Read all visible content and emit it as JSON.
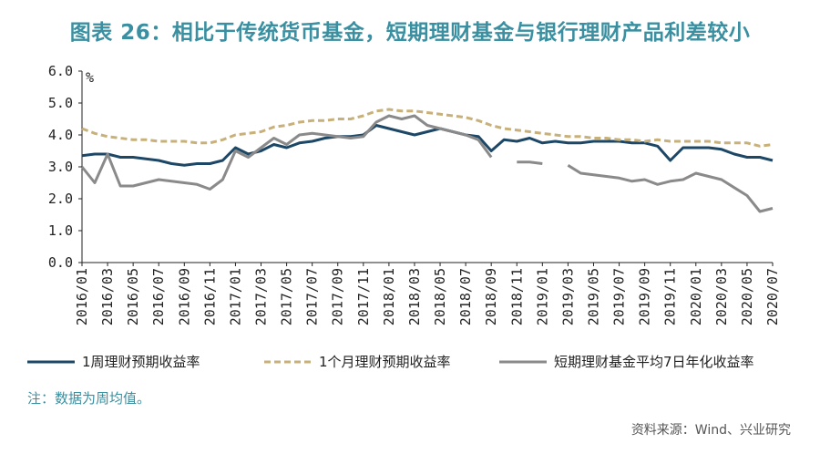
{
  "title": "图表 26：相比于传统货币基金，短期理财基金与银行理财产品利差较小",
  "note": "注：数据为周均值。",
  "source": "资料来源：Wind、兴业研究",
  "colors": {
    "title": "#3a8fa0",
    "s1": "#1d4766",
    "s2": "#c8b07a",
    "s3": "#8a8a8a"
  },
  "chart_data": {
    "type": "line",
    "yunit": "%",
    "ylim": [
      0,
      6
    ],
    "yticks": [
      "0.0",
      "1.0",
      "2.0",
      "3.0",
      "4.0",
      "5.0",
      "6.0"
    ],
    "xticks": [
      "2016/01",
      "2016/03",
      "2016/05",
      "2016/07",
      "2016/09",
      "2016/11",
      "2017/01",
      "2017/03",
      "2017/05",
      "2017/07",
      "2017/09",
      "2017/11",
      "2018/01",
      "2018/03",
      "2018/05",
      "2018/07",
      "2018/09",
      "2018/11",
      "2019/01",
      "2019/03",
      "2019/05",
      "2019/07",
      "2019/09",
      "2019/11",
      "2020/01",
      "2020/03",
      "2020/05",
      "2020/07"
    ],
    "grid": false,
    "legend_position": "bottom",
    "series": [
      {
        "name": "1周理财预期收益率",
        "style": "solid",
        "points": [
          [
            "2016/01",
            3.35
          ],
          [
            "2016/02",
            3.4
          ],
          [
            "2016/03",
            3.4
          ],
          [
            "2016/04",
            3.3
          ],
          [
            "2016/05",
            3.3
          ],
          [
            "2016/06",
            3.25
          ],
          [
            "2016/07",
            3.2
          ],
          [
            "2016/08",
            3.1
          ],
          [
            "2016/09",
            3.05
          ],
          [
            "2016/10",
            3.1
          ],
          [
            "2016/11",
            3.1
          ],
          [
            "2016/12",
            3.2
          ],
          [
            "2017/01",
            3.6
          ],
          [
            "2017/02",
            3.4
          ],
          [
            "2017/03",
            3.5
          ],
          [
            "2017/04",
            3.7
          ],
          [
            "2017/05",
            3.6
          ],
          [
            "2017/06",
            3.75
          ],
          [
            "2017/07",
            3.8
          ],
          [
            "2017/08",
            3.9
          ],
          [
            "2017/09",
            3.95
          ],
          [
            "2017/10",
            3.95
          ],
          [
            "2017/11",
            4.0
          ],
          [
            "2017/12",
            4.3
          ],
          [
            "2018/01",
            4.2
          ],
          [
            "2018/02",
            4.1
          ],
          [
            "2018/03",
            4.0
          ],
          [
            "2018/04",
            4.1
          ],
          [
            "2018/05",
            4.2
          ],
          [
            "2018/06",
            4.1
          ],
          [
            "2018/07",
            4.0
          ],
          [
            "2018/08",
            3.95
          ],
          [
            "2018/09",
            3.5
          ],
          [
            "2018/10",
            3.85
          ],
          [
            "2018/11",
            3.8
          ],
          [
            "2018/12",
            3.9
          ],
          [
            "2019/01",
            3.75
          ],
          [
            "2019/02",
            3.8
          ],
          [
            "2019/03",
            3.75
          ],
          [
            "2019/04",
            3.75
          ],
          [
            "2019/05",
            3.8
          ],
          [
            "2019/06",
            3.8
          ],
          [
            "2019/07",
            3.8
          ],
          [
            "2019/08",
            3.75
          ],
          [
            "2019/09",
            3.75
          ],
          [
            "2019/10",
            3.65
          ],
          [
            "2019/11",
            3.2
          ],
          [
            "2019/12",
            3.6
          ],
          [
            "2020/01",
            3.6
          ],
          [
            "2020/02",
            3.6
          ],
          [
            "2020/03",
            3.55
          ],
          [
            "2020/04",
            3.4
          ],
          [
            "2020/05",
            3.3
          ],
          [
            "2020/06",
            3.3
          ],
          [
            "2020/07",
            3.2
          ]
        ]
      },
      {
        "name": "1个月理财预期收益率",
        "style": "dashed",
        "points": [
          [
            "2016/01",
            4.2
          ],
          [
            "2016/02",
            4.05
          ],
          [
            "2016/03",
            3.95
          ],
          [
            "2016/04",
            3.9
          ],
          [
            "2016/05",
            3.85
          ],
          [
            "2016/06",
            3.85
          ],
          [
            "2016/07",
            3.8
          ],
          [
            "2016/08",
            3.8
          ],
          [
            "2016/09",
            3.8
          ],
          [
            "2016/10",
            3.75
          ],
          [
            "2016/11",
            3.75
          ],
          [
            "2016/12",
            3.85
          ],
          [
            "2017/01",
            4.0
          ],
          [
            "2017/02",
            4.05
          ],
          [
            "2017/03",
            4.1
          ],
          [
            "2017/04",
            4.25
          ],
          [
            "2017/05",
            4.3
          ],
          [
            "2017/06",
            4.4
          ],
          [
            "2017/07",
            4.45
          ],
          [
            "2017/08",
            4.45
          ],
          [
            "2017/09",
            4.5
          ],
          [
            "2017/10",
            4.5
          ],
          [
            "2017/11",
            4.6
          ],
          [
            "2017/12",
            4.75
          ],
          [
            "2018/01",
            4.8
          ],
          [
            "2018/02",
            4.75
          ],
          [
            "2018/03",
            4.75
          ],
          [
            "2018/04",
            4.7
          ],
          [
            "2018/05",
            4.65
          ],
          [
            "2018/06",
            4.6
          ],
          [
            "2018/07",
            4.55
          ],
          [
            "2018/08",
            4.45
          ],
          [
            "2018/09",
            4.3
          ],
          [
            "2018/10",
            4.2
          ],
          [
            "2018/11",
            4.15
          ],
          [
            "2018/12",
            4.1
          ],
          [
            "2019/01",
            4.05
          ],
          [
            "2019/02",
            4.0
          ],
          [
            "2019/03",
            3.95
          ],
          [
            "2019/04",
            3.95
          ],
          [
            "2019/05",
            3.9
          ],
          [
            "2019/06",
            3.9
          ],
          [
            "2019/07",
            3.85
          ],
          [
            "2019/08",
            3.85
          ],
          [
            "2019/09",
            3.8
          ],
          [
            "2019/10",
            3.85
          ],
          [
            "2019/11",
            3.8
          ],
          [
            "2019/12",
            3.8
          ],
          [
            "2020/01",
            3.8
          ],
          [
            "2020/02",
            3.8
          ],
          [
            "2020/03",
            3.75
          ],
          [
            "2020/04",
            3.75
          ],
          [
            "2020/05",
            3.75
          ],
          [
            "2020/06",
            3.65
          ],
          [
            "2020/07",
            3.7
          ]
        ]
      },
      {
        "name": "短期理财基金平均7日年化收益率",
        "style": "solid",
        "points": [
          [
            "2016/01",
            3.0
          ],
          [
            "2016/02",
            2.5
          ],
          [
            "2016/03",
            3.4
          ],
          [
            "2016/04",
            2.4
          ],
          [
            "2016/05",
            2.4
          ],
          [
            "2016/06",
            2.5
          ],
          [
            "2016/07",
            2.6
          ],
          [
            "2016/08",
            2.55
          ],
          [
            "2016/09",
            2.5
          ],
          [
            "2016/10",
            2.45
          ],
          [
            "2016/11",
            2.3
          ],
          [
            "2016/12",
            2.6
          ],
          [
            "2017/01",
            3.5
          ],
          [
            "2017/02",
            3.3
          ],
          [
            "2017/03",
            3.6
          ],
          [
            "2017/04",
            3.9
          ],
          [
            "2017/05",
            3.7
          ],
          [
            "2017/06",
            4.0
          ],
          [
            "2017/07",
            4.05
          ],
          [
            "2017/08",
            4.0
          ],
          [
            "2017/09",
            3.95
          ],
          [
            "2017/10",
            3.9
          ],
          [
            "2017/11",
            3.95
          ],
          [
            "2017/12",
            4.4
          ],
          [
            "2018/01",
            4.6
          ],
          [
            "2018/02",
            4.5
          ],
          [
            "2018/03",
            4.6
          ],
          [
            "2018/04",
            4.3
          ],
          [
            "2018/05",
            4.2
          ],
          [
            "2018/06",
            4.1
          ],
          [
            "2018/07",
            4.0
          ],
          [
            "2018/08",
            3.85
          ],
          [
            "2018/09",
            3.3
          ],
          [
            "2018/10",
            null
          ],
          [
            "2018/11",
            3.15
          ],
          [
            "2018/12",
            3.15
          ],
          [
            "2019/01",
            3.1
          ],
          [
            "2019/02",
            null
          ],
          [
            "2019/03",
            3.05
          ],
          [
            "2019/04",
            2.8
          ],
          [
            "2019/05",
            2.75
          ],
          [
            "2019/06",
            2.7
          ],
          [
            "2019/07",
            2.65
          ],
          [
            "2019/08",
            2.55
          ],
          [
            "2019/09",
            2.6
          ],
          [
            "2019/10",
            2.45
          ],
          [
            "2019/11",
            2.55
          ],
          [
            "2019/12",
            2.6
          ],
          [
            "2020/01",
            2.8
          ],
          [
            "2020/02",
            2.7
          ],
          [
            "2020/03",
            2.6
          ],
          [
            "2020/04",
            2.35
          ],
          [
            "2020/05",
            2.1
          ],
          [
            "2020/06",
            1.6
          ],
          [
            "2020/07",
            1.7
          ]
        ]
      }
    ]
  }
}
